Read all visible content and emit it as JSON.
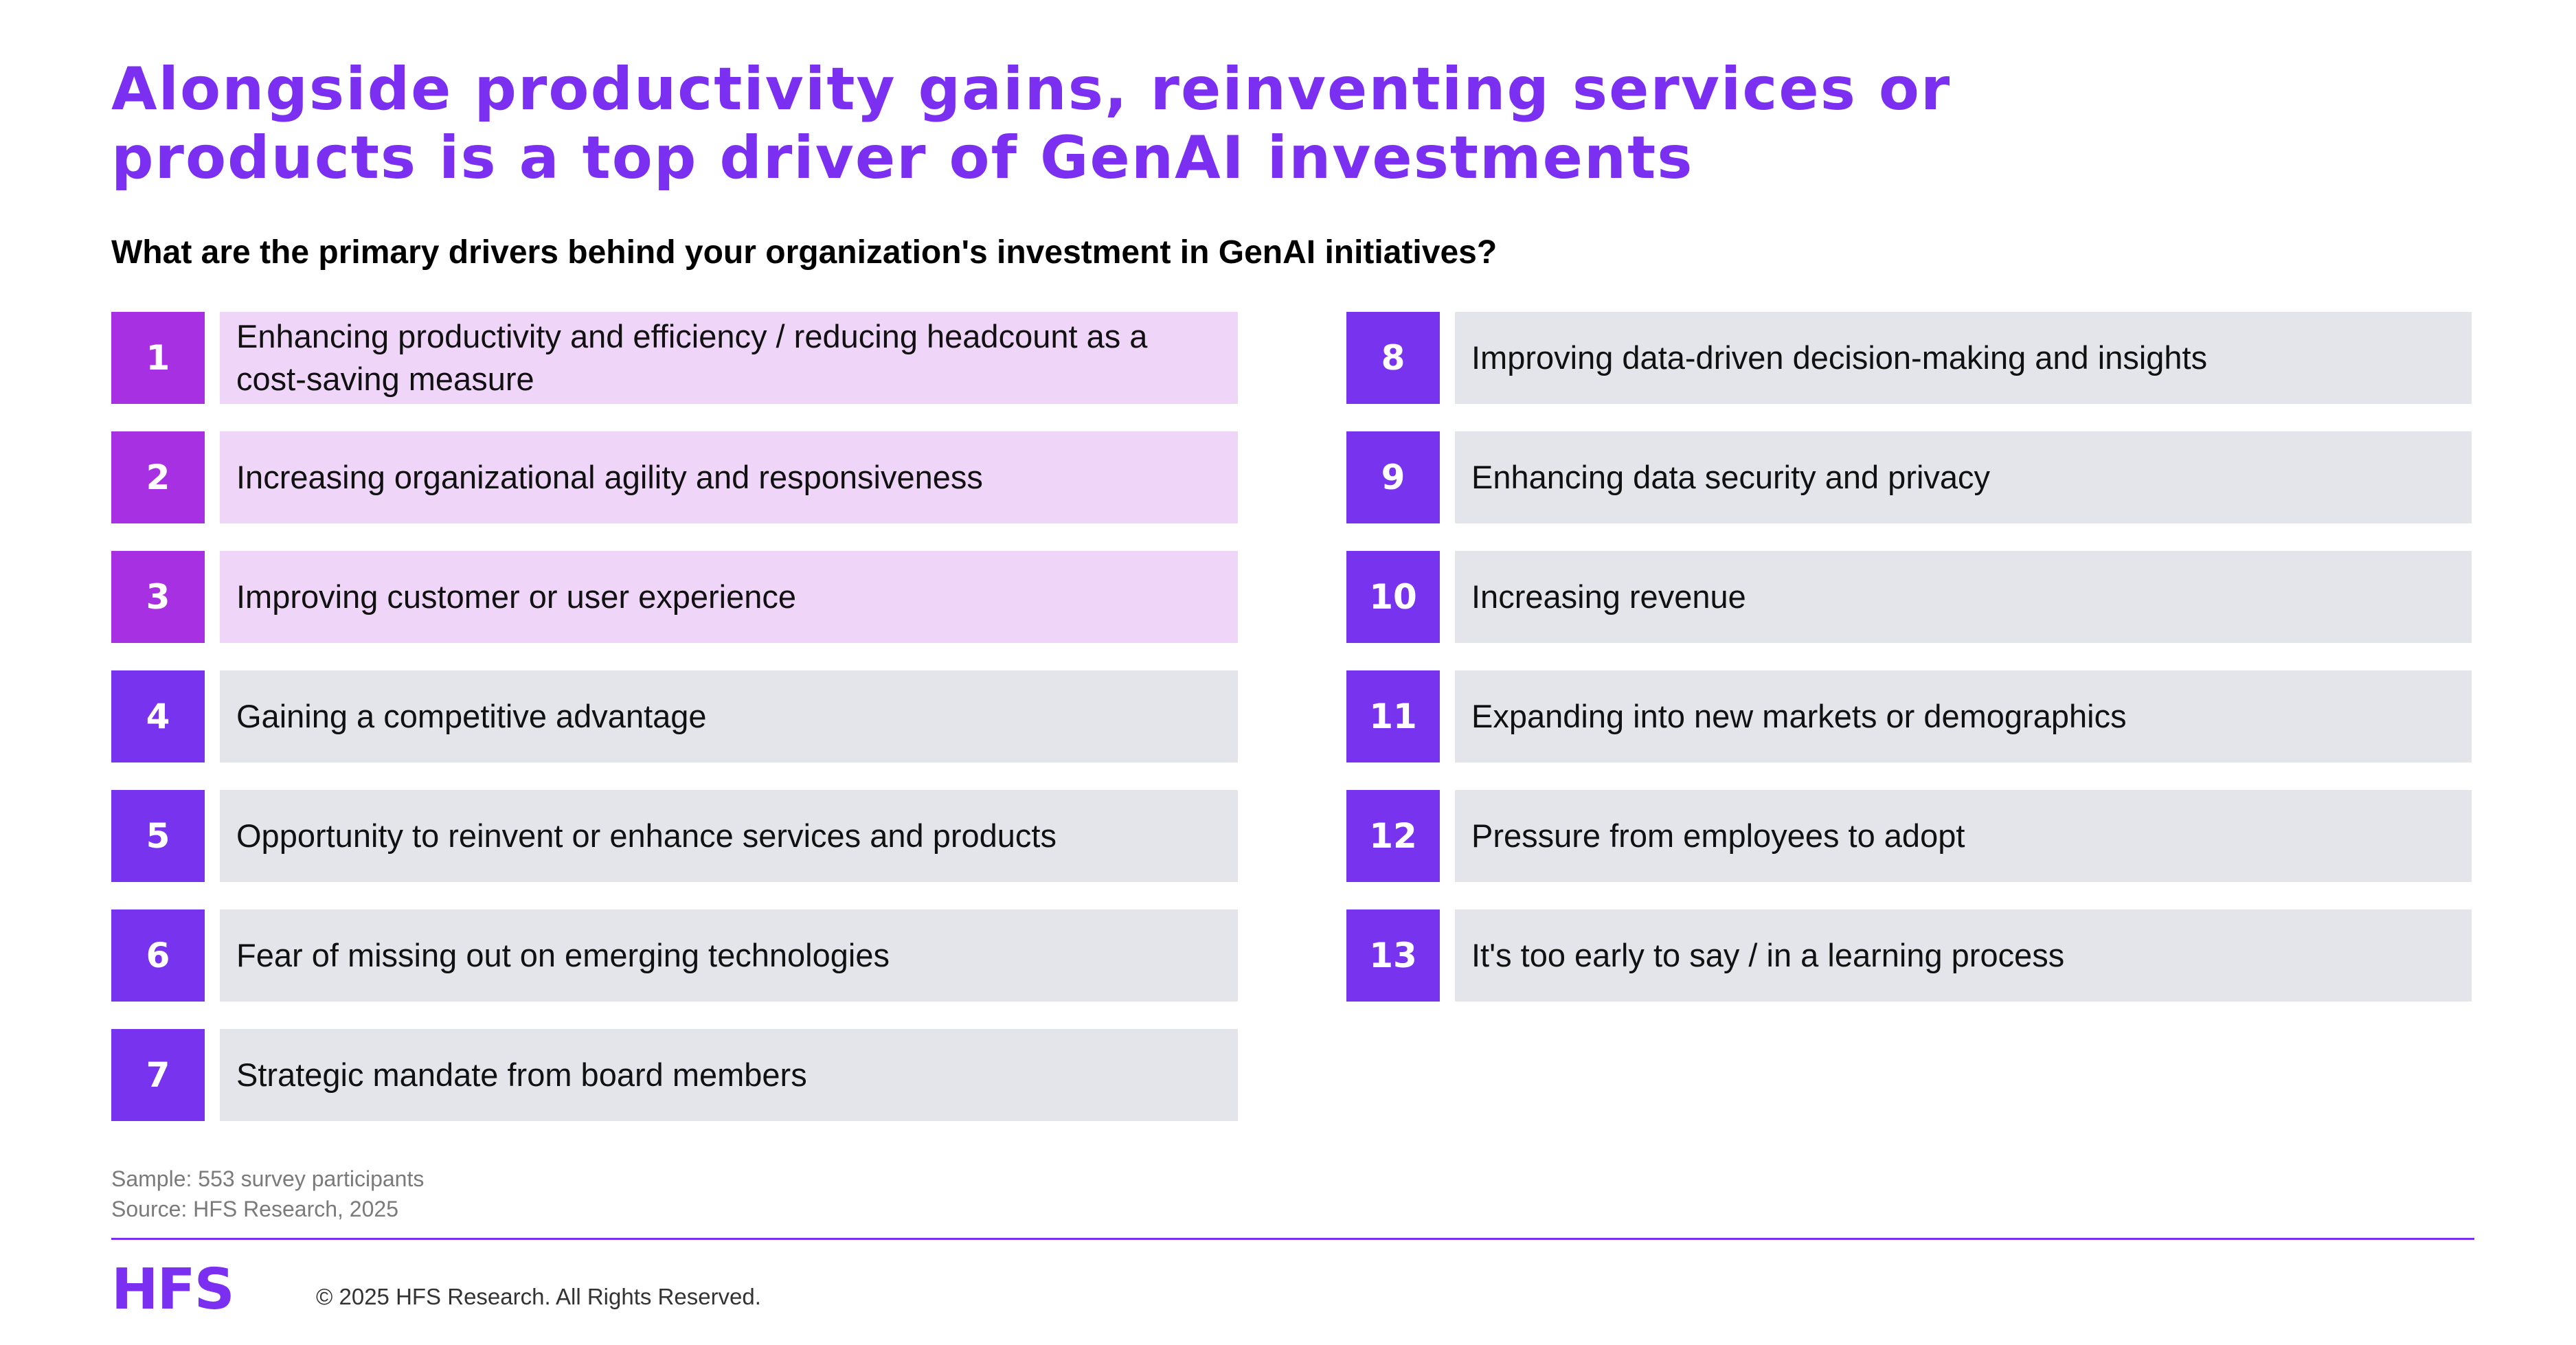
{
  "title": {
    "line1": "Alongside productivity gains, reinventing services or",
    "line2": "products is a top driver of GenAI investments"
  },
  "question": "What are the primary drivers behind your organization's investment in GenAI initiatives?",
  "left_items": [
    {
      "number": "1",
      "label": "Enhancing productivity and efficiency / reducing headcount as a cost-saving measure"
    },
    {
      "number": "2",
      "label": "Increasing organizational agility and responsiveness"
    },
    {
      "number": "3",
      "label": "Improving customer or user experience"
    },
    {
      "number": "4",
      "label": "Gaining a competitive advantage"
    },
    {
      "number": "5",
      "label": "Opportunity to reinvent or enhance services and products"
    },
    {
      "number": "6",
      "label": "Fear of missing out on emerging technologies"
    },
    {
      "number": "7",
      "label": "Strategic mandate from board members"
    }
  ],
  "right_items": [
    {
      "number": "8",
      "label": "Improving data-driven decision-making and insights"
    },
    {
      "number": "9",
      "label": "Enhancing data security and privacy"
    },
    {
      "number": "10",
      "label": "Increasing revenue"
    },
    {
      "number": "11",
      "label": "Expanding into new markets or demographics"
    },
    {
      "number": "12",
      "label": "Pressure from employees to adopt"
    },
    {
      "number": "13",
      "label": "It's too early to say / in a learning process"
    }
  ],
  "footnotes": {
    "sample": "Sample: 553 survey participants",
    "source": "Source: HFS Research, 2025"
  },
  "footer": {
    "logo_text": "HFS",
    "copyright": "© 2025 HFS Research. All Rights Reserved."
  },
  "colors": {
    "brand_purple": "#7b2ff0",
    "highlight_number": "#a630e2",
    "highlight_fill": "#efd5f8",
    "standard_number": "#7733ee",
    "standard_fill": "#e3e5ea"
  }
}
